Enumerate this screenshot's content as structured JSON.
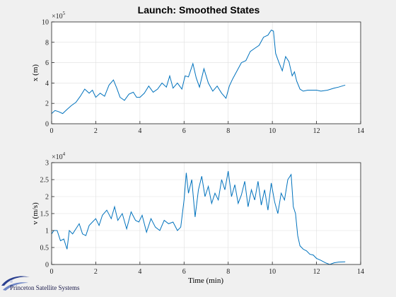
{
  "logo": {
    "text": "Princeton Satellite Systems"
  },
  "chart_data": [
    {
      "type": "line",
      "title": "Launch: Smoothed States",
      "ylabel": "x (m)",
      "xlabel": "",
      "y_multiplier": "×10",
      "y_exponent": "5",
      "xlim": [
        0,
        14
      ],
      "ylim": [
        0,
        10
      ],
      "xticks": [
        "0",
        "2",
        "4",
        "6",
        "8",
        "10",
        "12",
        "14"
      ],
      "yticks": [
        "0",
        "2",
        "4",
        "6",
        "8",
        "10"
      ],
      "grid": true,
      "color": "#0072bd",
      "series": [
        {
          "x": [
            0,
            0.15,
            0.3,
            0.5,
            0.7,
            0.9,
            1.1,
            1.3,
            1.5,
            1.7,
            1.85,
            2.0,
            2.2,
            2.4,
            2.6,
            2.8,
            2.95,
            3.1,
            3.3,
            3.5,
            3.7,
            3.85,
            4.0,
            4.2,
            4.4,
            4.6,
            4.8,
            5.0,
            5.2,
            5.35,
            5.5,
            5.7,
            5.9,
            6.05,
            6.2,
            6.4,
            6.55,
            6.7,
            6.9,
            7.1,
            7.3,
            7.5,
            7.7,
            7.9,
            8.05,
            8.2,
            8.4,
            8.6,
            8.8,
            9.0,
            9.2,
            9.4,
            9.6,
            9.8,
            9.95,
            10.05,
            10.15,
            10.3,
            10.45,
            10.6,
            10.75,
            10.9,
            11.0,
            11.1,
            11.25,
            11.4,
            11.6,
            11.8,
            12.0,
            12.2,
            12.5,
            12.8,
            13.0,
            13.3
          ],
          "y": [
            1.0,
            1.3,
            1.2,
            1.0,
            1.4,
            1.8,
            2.1,
            2.7,
            3.4,
            3.0,
            3.3,
            2.6,
            3.0,
            2.7,
            3.8,
            4.3,
            3.5,
            2.6,
            2.3,
            2.9,
            3.1,
            2.6,
            2.6,
            3.0,
            3.7,
            3.1,
            3.4,
            4.0,
            3.6,
            4.7,
            3.5,
            4.0,
            3.4,
            4.7,
            4.6,
            5.9,
            4.5,
            3.6,
            5.4,
            4.0,
            3.2,
            3.7,
            3.0,
            2.5,
            3.7,
            4.4,
            5.2,
            6.0,
            6.2,
            7.1,
            7.4,
            7.7,
            8.5,
            8.7,
            9.2,
            9.1,
            6.9,
            6.0,
            5.2,
            6.6,
            6.1,
            4.7,
            5.1,
            4.2,
            3.4,
            3.2,
            3.3,
            3.3,
            3.3,
            3.2,
            3.3,
            3.5,
            3.6,
            3.8
          ]
        }
      ]
    },
    {
      "type": "line",
      "title": "",
      "ylabel": "v (m/s)",
      "xlabel": "Time (min)",
      "y_multiplier": "×10",
      "y_exponent": "4",
      "xlim": [
        0,
        14
      ],
      "ylim": [
        0,
        3
      ],
      "xticks": [
        "0",
        "2",
        "4",
        "6",
        "8",
        "10",
        "12",
        "14"
      ],
      "yticks": [
        "0",
        "0.5",
        "1",
        "1.5",
        "2",
        "2.5",
        "3"
      ],
      "grid": true,
      "color": "#0072bd",
      "series": [
        {
          "x": [
            0,
            0.1,
            0.25,
            0.4,
            0.55,
            0.7,
            0.8,
            0.95,
            1.1,
            1.25,
            1.4,
            1.55,
            1.7,
            1.85,
            2.0,
            2.15,
            2.3,
            2.5,
            2.7,
            2.85,
            3.0,
            3.2,
            3.4,
            3.6,
            3.8,
            3.95,
            4.1,
            4.3,
            4.5,
            4.7,
            4.9,
            5.1,
            5.3,
            5.5,
            5.7,
            5.85,
            6.0,
            6.1,
            6.2,
            6.35,
            6.5,
            6.65,
            6.8,
            6.95,
            7.1,
            7.25,
            7.4,
            7.55,
            7.7,
            7.85,
            8.0,
            8.15,
            8.3,
            8.45,
            8.6,
            8.75,
            8.9,
            9.05,
            9.2,
            9.35,
            9.5,
            9.65,
            9.8,
            9.95,
            10.1,
            10.25,
            10.4,
            10.55,
            10.7,
            10.85,
            10.95,
            11.05,
            11.15,
            11.25,
            11.4,
            11.55,
            11.7,
            11.85,
            12.0,
            12.2,
            12.4,
            12.6,
            12.8,
            13.0,
            13.3
          ],
          "y": [
            0.9,
            1.0,
            1.0,
            0.7,
            0.75,
            0.45,
            1.0,
            0.9,
            1.05,
            1.2,
            0.9,
            0.85,
            1.15,
            1.25,
            1.35,
            1.15,
            1.45,
            1.6,
            1.35,
            1.7,
            1.3,
            1.5,
            1.05,
            1.55,
            1.3,
            1.25,
            1.45,
            0.95,
            1.35,
            1.1,
            1.0,
            1.3,
            1.2,
            1.25,
            1.0,
            1.1,
            1.9,
            2.7,
            2.1,
            2.5,
            1.4,
            2.2,
            2.6,
            2.0,
            2.3,
            1.8,
            2.1,
            1.9,
            2.5,
            2.2,
            2.75,
            2.0,
            2.35,
            1.8,
            2.05,
            2.45,
            1.7,
            2.2,
            1.9,
            2.45,
            1.75,
            2.2,
            1.6,
            2.4,
            1.85,
            1.5,
            2.1,
            1.9,
            2.5,
            2.65,
            1.7,
            1.5,
            0.85,
            0.55,
            0.45,
            0.4,
            0.3,
            0.28,
            0.18,
            0.12,
            0.05,
            0.0,
            0.05,
            0.07,
            0.08
          ]
        }
      ]
    }
  ]
}
